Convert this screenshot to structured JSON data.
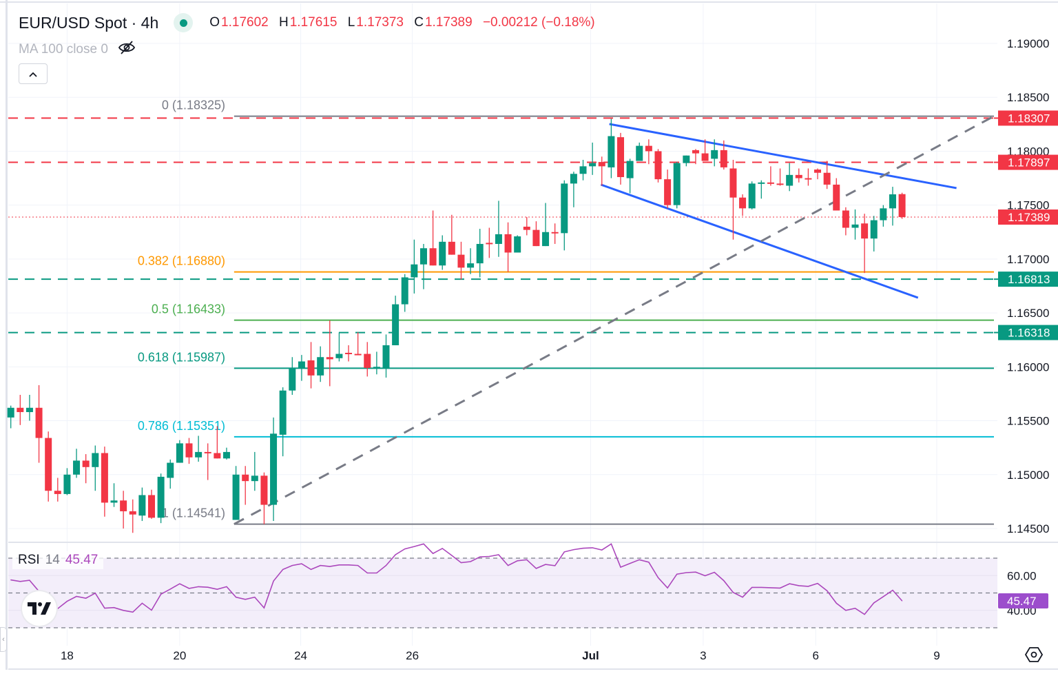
{
  "header": {
    "symbol_title": "EUR/USD Spot · 4h",
    "ohlc": {
      "o_label": "O",
      "o": "1.17602",
      "h_label": "H",
      "h": "1.17615",
      "l_label": "L",
      "l": "1.17373",
      "c_label": "C",
      "c": "1.17389",
      "change": "−0.00212 (−0.18%)"
    },
    "status_icon": "market-open-dot",
    "ma_legend": "MA 100 close 0",
    "ma_visibility_icon": "eye-slash-icon",
    "collapse_icon": "chevron-up-icon"
  },
  "colors": {
    "up": "#089981",
    "down": "#F23645",
    "channel": "#2962FF",
    "fib_0": "#787B86",
    "fib_0382": "#FF9800",
    "fib_05": "#4CAF50",
    "fib_0618": "#089981",
    "fib_0786": "#00BCD4",
    "fib_1": "#787B86",
    "rsi": "#AB47BC",
    "rsi_band": "#F3EEFA"
  },
  "chart_data": [
    {
      "type": "candlestick",
      "title": "EUR/USD Spot · 4h",
      "ylim": [
        1.1435,
        1.1915
      ],
      "grid": true,
      "y_ticks": [
        "1.19000",
        "1.18500",
        "1.18000",
        "1.17500",
        "1.17000",
        "1.16500",
        "1.16000",
        "1.15500",
        "1.15000",
        "1.14500"
      ],
      "x_ticks": [
        {
          "label": "18",
          "bar": 6
        },
        {
          "label": "20",
          "bar": 18
        },
        {
          "label": "24",
          "bar": 30.9
        },
        {
          "label": "26",
          "bar": 42.8
        },
        {
          "label": "Jul",
          "bar": 61.8,
          "bold": true
        },
        {
          "label": "3",
          "bar": 73.8
        },
        {
          "label": "6",
          "bar": 85.8
        },
        {
          "label": "9",
          "bar": 98.7
        }
      ],
      "ohlc_columns": [
        "open",
        "high",
        "low",
        "close"
      ],
      "candles": [
        [
          1.1553,
          1.1564,
          1.1543,
          1.1562
        ],
        [
          1.1562,
          1.1574,
          1.1546,
          1.1558
        ],
        [
          1.1558,
          1.1574,
          1.155,
          1.1562
        ],
        [
          1.1562,
          1.1583,
          1.1511,
          1.1534
        ],
        [
          1.1534,
          1.154,
          1.1475,
          1.1485
        ],
        [
          1.1485,
          1.1497,
          1.1475,
          1.1482
        ],
        [
          1.1482,
          1.1506,
          1.1481,
          1.15
        ],
        [
          1.15,
          1.1524,
          1.1497,
          1.1513
        ],
        [
          1.1513,
          1.1519,
          1.1492,
          1.1507
        ],
        [
          1.1507,
          1.1527,
          1.1485,
          1.152
        ],
        [
          1.152,
          1.1526,
          1.1461,
          1.1474
        ],
        [
          1.1474,
          1.1492,
          1.147,
          1.1476
        ],
        [
          1.1476,
          1.1485,
          1.145,
          1.1466
        ],
        [
          1.1466,
          1.1477,
          1.1446,
          1.1463
        ],
        [
          1.1462,
          1.1488,
          1.1457,
          1.1481
        ],
        [
          1.1481,
          1.1486,
          1.1459,
          1.146
        ],
        [
          1.146,
          1.1501,
          1.1455,
          1.1498
        ],
        [
          1.1497,
          1.1514,
          1.1487,
          1.1511
        ],
        [
          1.1511,
          1.1532,
          1.1511,
          1.1529
        ],
        [
          1.1529,
          1.1534,
          1.151,
          1.1516
        ],
        [
          1.1516,
          1.1536,
          1.1512,
          1.1521
        ],
        [
          1.1521,
          1.1529,
          1.1495,
          1.152
        ],
        [
          1.152,
          1.1545,
          1.1515,
          1.1515
        ],
        [
          1.1515,
          1.1525,
          1.1514,
          1.1521
        ],
        [
          1.1458,
          1.1508,
          1.1458,
          1.15
        ],
        [
          1.15,
          1.1508,
          1.1472,
          1.1494
        ],
        [
          1.1494,
          1.1521,
          1.1485,
          1.1499
        ],
        [
          1.1499,
          1.1502,
          1.1454,
          1.1472
        ],
        [
          1.1472,
          1.1553,
          1.1457,
          1.1538
        ],
        [
          1.1537,
          1.1581,
          1.1517,
          1.1578
        ],
        [
          1.1578,
          1.1609,
          1.1574,
          1.1599
        ],
        [
          1.1599,
          1.1611,
          1.1587,
          1.1605
        ],
        [
          1.1606,
          1.1623,
          1.158,
          1.1592
        ],
        [
          1.1592,
          1.1619,
          1.1586,
          1.1609
        ],
        [
          1.1609,
          1.1643,
          1.1582,
          1.1607
        ],
        [
          1.1608,
          1.1632,
          1.1605,
          1.1612
        ],
        [
          1.1613,
          1.162,
          1.1605,
          1.1612
        ],
        [
          1.1612,
          1.1632,
          1.1611,
          1.1611
        ],
        [
          1.1612,
          1.1623,
          1.1591,
          1.1599
        ],
        [
          1.1599,
          1.1614,
          1.1593,
          1.16
        ],
        [
          1.1599,
          1.163,
          1.159,
          1.162
        ],
        [
          1.162,
          1.1666,
          1.162,
          1.1658
        ],
        [
          1.1658,
          1.1686,
          1.1651,
          1.1683
        ],
        [
          1.1683,
          1.1718,
          1.1668,
          1.1695
        ],
        [
          1.1695,
          1.1714,
          1.1672,
          1.171
        ],
        [
          1.171,
          1.1745,
          1.1694,
          1.1694
        ],
        [
          1.1694,
          1.1722,
          1.169,
          1.1716
        ],
        [
          1.1716,
          1.1741,
          1.1704,
          1.1704
        ],
        [
          1.1704,
          1.1716,
          1.1681,
          1.1692
        ],
        [
          1.1692,
          1.171,
          1.1686,
          1.1696
        ],
        [
          1.1696,
          1.1728,
          1.1683,
          1.1714
        ],
        [
          1.1715,
          1.1729,
          1.1701,
          1.1714
        ],
        [
          1.1714,
          1.1754,
          1.1702,
          1.1723
        ],
        [
          1.1723,
          1.1734,
          1.1688,
          1.1706
        ],
        [
          1.1706,
          1.1722,
          1.1706,
          1.1721
        ],
        [
          1.173,
          1.1739,
          1.1722,
          1.1727
        ],
        [
          1.1727,
          1.1735,
          1.1712,
          1.1712
        ],
        [
          1.1712,
          1.1752,
          1.1712,
          1.1725
        ],
        [
          1.1725,
          1.1733,
          1.1714,
          1.1724
        ],
        [
          1.1724,
          1.1773,
          1.1708,
          1.177
        ],
        [
          1.177,
          1.1781,
          1.1748,
          1.1779
        ],
        [
          1.1779,
          1.1792,
          1.1773,
          1.1786
        ],
        [
          1.1786,
          1.1808,
          1.1778,
          1.1789
        ],
        [
          1.179,
          1.1795,
          1.1768,
          1.1786
        ],
        [
          1.1785,
          1.183,
          1.1775,
          1.1814
        ],
        [
          1.1813,
          1.1817,
          1.1769,
          1.1776
        ],
        [
          1.1775,
          1.1793,
          1.1761,
          1.1791
        ],
        [
          1.1791,
          1.1808,
          1.1791,
          1.1805
        ],
        [
          1.1805,
          1.1811,
          1.1788,
          1.18
        ],
        [
          1.18,
          1.1802,
          1.1771,
          1.1774
        ],
        [
          1.1774,
          1.1783,
          1.1747,
          1.175
        ],
        [
          1.175,
          1.179,
          1.1747,
          1.1789
        ],
        [
          1.1789,
          1.1796,
          1.1786,
          1.1796
        ],
        [
          1.1801,
          1.1802,
          1.1788,
          1.1798
        ],
        [
          1.1798,
          1.1811,
          1.1791,
          1.1791
        ],
        [
          1.1793,
          1.1811,
          1.1786,
          1.1801
        ],
        [
          1.1801,
          1.181,
          1.1783,
          1.1785
        ],
        [
          1.1784,
          1.1792,
          1.1718,
          1.1757
        ],
        [
          1.1757,
          1.176,
          1.174,
          1.1747
        ],
        [
          1.1747,
          1.1772,
          1.1746,
          1.177
        ],
        [
          1.177,
          1.1773,
          1.1756,
          1.1771
        ],
        [
          1.1771,
          1.1786,
          1.1768,
          1.177
        ],
        [
          1.177,
          1.1784,
          1.1768,
          1.1769
        ],
        [
          1.1768,
          1.1789,
          1.1763,
          1.1778
        ],
        [
          1.1778,
          1.1784,
          1.1771,
          1.1775
        ],
        [
          1.1775,
          1.1784,
          1.1768,
          1.1774
        ],
        [
          1.1783,
          1.1784,
          1.1774,
          1.178
        ],
        [
          1.178,
          1.1791,
          1.1765,
          1.1769
        ],
        [
          1.1769,
          1.1775,
          1.1745,
          1.1745
        ],
        [
          1.1745,
          1.1748,
          1.1722,
          1.1729
        ],
        [
          1.1729,
          1.1746,
          1.1718,
          1.1732
        ],
        [
          1.1733,
          1.1742,
          1.1687,
          1.1719
        ],
        [
          1.1719,
          1.174,
          1.1707,
          1.1736
        ],
        [
          1.1736,
          1.175,
          1.173,
          1.1747
        ],
        [
          1.1747,
          1.1767,
          1.1731,
          1.176
        ],
        [
          1.17602,
          1.17615,
          1.17373,
          1.17389
        ]
      ],
      "fib_levels": [
        {
          "label": "0 (1.18325)",
          "price": 1.18325,
          "color": "#787B86"
        },
        {
          "label": "0.382 (1.16880)",
          "price": 1.1688,
          "color": "#FF9800"
        },
        {
          "label": "0.5 (1.16433)",
          "price": 1.16433,
          "color": "#4CAF50"
        },
        {
          "label": "0.618 (1.15987)",
          "price": 1.15987,
          "color": "#089981"
        },
        {
          "label": "0.786 (1.15351)",
          "price": 1.15351,
          "color": "#00BCD4"
        },
        {
          "label": "1 (1.14541)",
          "price": 1.14541,
          "color": "#787B86"
        }
      ],
      "fib_start_bar": 23.8,
      "horizontal_levels": [
        {
          "price": 1.18307,
          "label": "1.18307",
          "color": "#F23645",
          "style": "dashed"
        },
        {
          "price": 1.17897,
          "label": "1.17897",
          "color": "#F23645",
          "style": "dashed"
        },
        {
          "price": 1.16813,
          "label": "1.16813",
          "color": "#089981",
          "style": "dashed"
        },
        {
          "price": 1.16318,
          "label": "1.16318",
          "color": "#089981",
          "style": "dashed"
        }
      ],
      "last_price": {
        "price": 1.17389,
        "label": "1.17389",
        "color": "#F23645"
      },
      "trendlines": [
        {
          "name": "channel-upper",
          "from": [
            63.8,
            1.18252
          ],
          "to": [
            100.8,
            1.17658
          ],
          "color": "#2962FF",
          "style": "solid"
        },
        {
          "name": "channel-lower",
          "from": [
            62.9,
            1.1769
          ],
          "to": [
            96.7,
            1.16641
          ],
          "color": "#2962FF",
          "style": "solid"
        },
        {
          "name": "rising-trendline",
          "from": [
            23.8,
            1.14541
          ],
          "to": [
            104.8,
            1.18325
          ],
          "color": "#787B86",
          "style": "dashed"
        }
      ]
    },
    {
      "type": "line",
      "title": "RSI 14",
      "current": "45.47",
      "ylim": [
        26,
        80
      ],
      "bands": [
        70,
        50,
        30
      ],
      "y_ticks": [
        "60.00",
        "40.00"
      ],
      "values": [
        57.5,
        56.6,
        57.3,
        50.9,
        38.5,
        41.0,
        45.2,
        48.0,
        47.0,
        49.9,
        41.3,
        41.6,
        40.0,
        39.0,
        44.1,
        40.1,
        49.3,
        52.2,
        55.3,
        52.6,
        53.6,
        53.3,
        52.1,
        53.6,
        47.6,
        46.3,
        47.6,
        41.4,
        56.9,
        63.5,
        65.8,
        66.8,
        63.5,
        65.8,
        65.2,
        66.1,
        66.1,
        65.8,
        61.5,
        61.5,
        65.8,
        72.0,
        75.3,
        76.7,
        78.2,
        72.7,
        75.6,
        71.6,
        67.4,
        68.0,
        70.7,
        71.0,
        72.0,
        65.8,
        68.5,
        69.1,
        64.1,
        66.4,
        65.7,
        73.6,
        74.9,
        75.7,
        76.0,
        74.7,
        78.2,
        64.8,
        67.0,
        69.1,
        67.7,
        58.8,
        52.9,
        60.8,
        61.7,
        62.0,
        59.9,
        61.9,
        57.1,
        50.3,
        47.6,
        53.2,
        53.2,
        53.0,
        52.8,
        55.3,
        54.2,
        53.8,
        55.5,
        51.3,
        44.1,
        40.0,
        41.2,
        37.7,
        44.3,
        47.9,
        51.6,
        45.47
      ]
    }
  ],
  "rsi_legend": {
    "name": "RSI",
    "params": "14",
    "value": "45.47"
  }
}
